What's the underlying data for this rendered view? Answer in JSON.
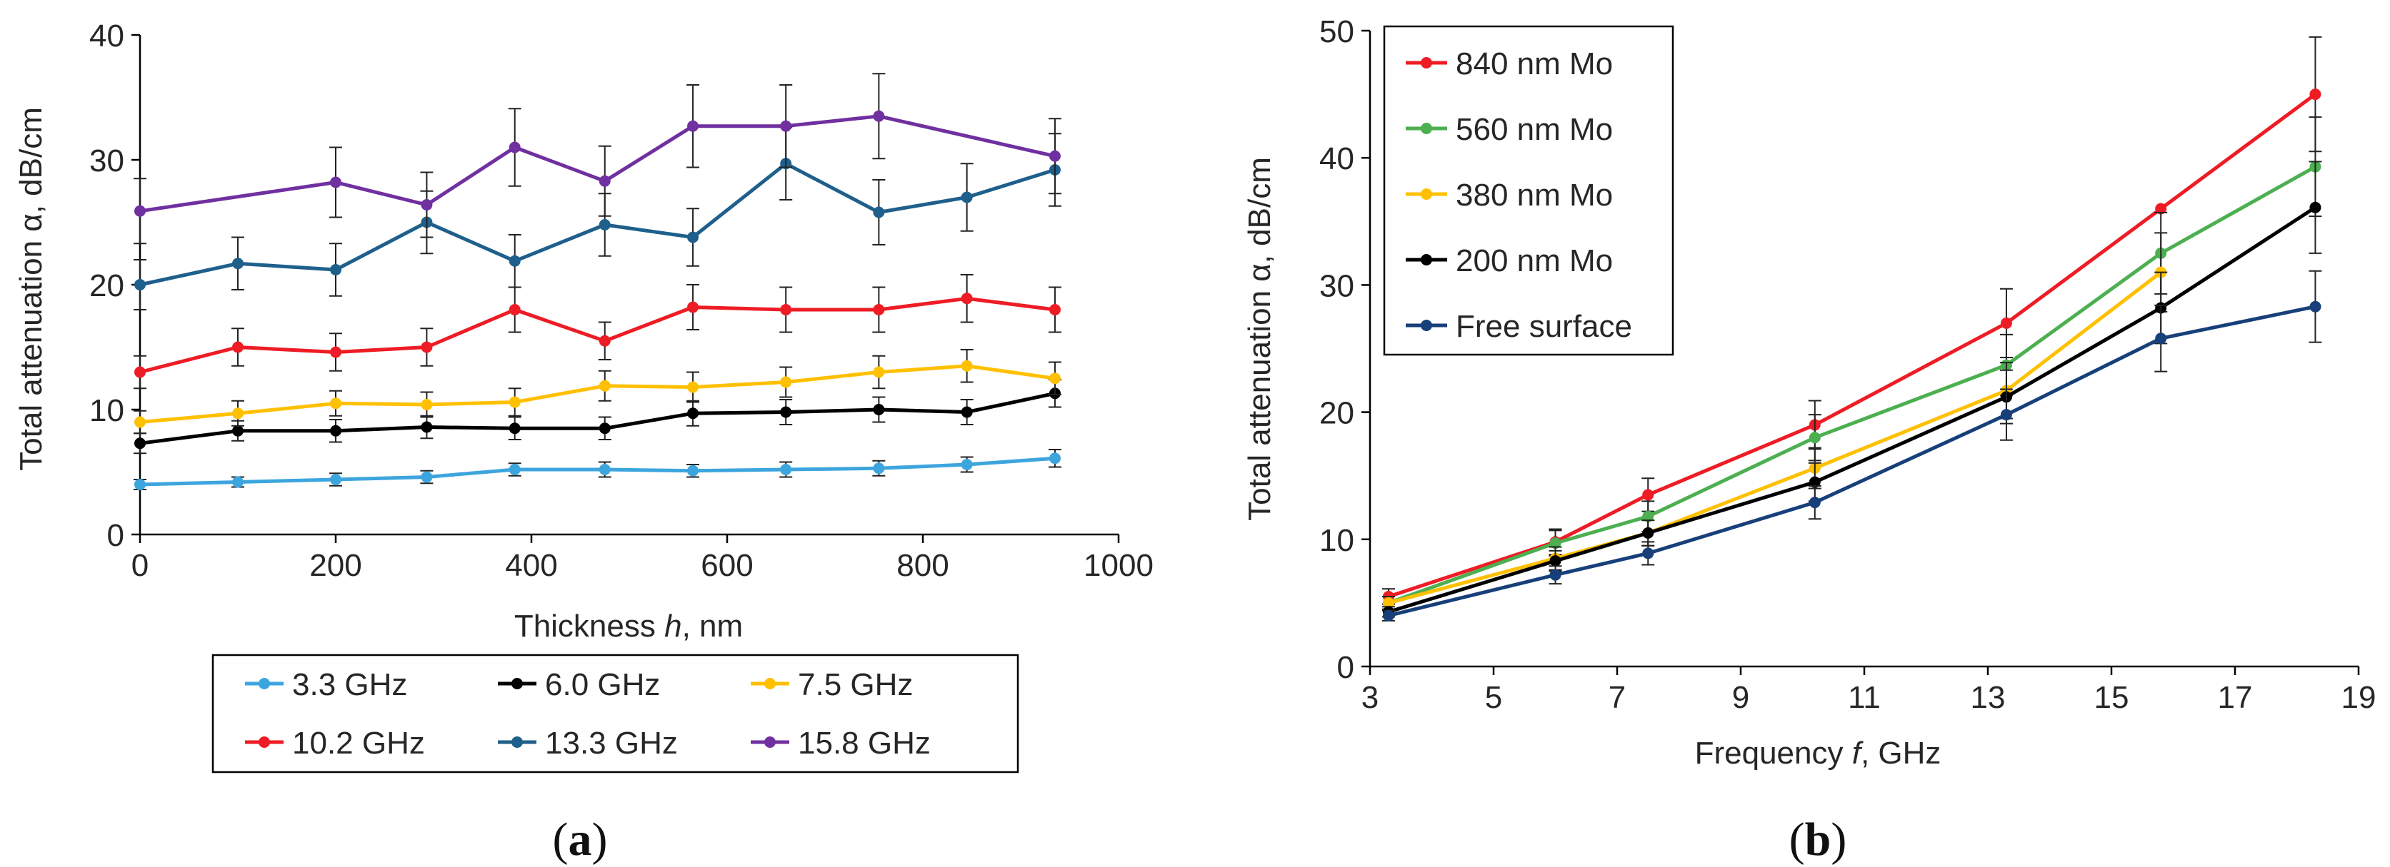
{
  "chart_data": [
    {
      "panel_label": "(a)",
      "panel_letter": "a",
      "type": "line",
      "xlabel_pre": "Thickness ",
      "xlabel_var": "h",
      "xlabel_post": ", nm",
      "ylabel": "Total attenuation α, dB/cm",
      "xlim": [
        0,
        1000
      ],
      "ylim": [
        0,
        40
      ],
      "xticks": [
        "0",
        "200",
        "400",
        "600",
        "800",
        "1000"
      ],
      "yticks": [
        "0",
        "10",
        "20",
        "30",
        "40"
      ],
      "legend_position": "bottom",
      "x": [
        0,
        100,
        200,
        293,
        383,
        475,
        565,
        660,
        755,
        845,
        935
      ],
      "series": [
        {
          "name": "3.3 GHz",
          "color": "#3DA5DE",
          "values": [
            4.0,
            4.2,
            4.4,
            4.6,
            5.2,
            5.2,
            5.1,
            5.2,
            5.3,
            5.6,
            6.1
          ],
          "errors": [
            0.4,
            0.4,
            0.5,
            0.5,
            0.5,
            0.6,
            0.5,
            0.6,
            0.6,
            0.6,
            0.7
          ]
        },
        {
          "name": "6.0 GHz",
          "color": "#000000",
          "values": [
            7.3,
            8.3,
            8.3,
            8.6,
            8.5,
            8.5,
            9.7,
            9.8,
            10.0,
            9.8,
            11.3
          ],
          "errors": [
            0.8,
            0.8,
            0.9,
            0.9,
            0.9,
            0.9,
            1.0,
            1.0,
            1.0,
            1.0,
            1.1
          ]
        },
        {
          "name": "7.5 GHz",
          "color": "#FFC000",
          "values": [
            9.0,
            9.7,
            10.5,
            10.4,
            10.6,
            11.9,
            11.8,
            12.2,
            13.0,
            13.5,
            12.5
          ],
          "errors": [
            0.9,
            1.0,
            1.0,
            1.0,
            1.1,
            1.2,
            1.2,
            1.2,
            1.3,
            1.3,
            1.3
          ]
        },
        {
          "name": "10.2 GHz",
          "color": "#EE1C25",
          "values": [
            13.0,
            15.0,
            14.6,
            15.0,
            18.0,
            15.5,
            18.2,
            18.0,
            18.0,
            18.9,
            18.0
          ],
          "errors": [
            1.3,
            1.5,
            1.5,
            1.5,
            1.8,
            1.5,
            1.8,
            1.8,
            1.8,
            1.9,
            1.8
          ]
        },
        {
          "name": "13.3 GHz",
          "color": "#1F5F8B",
          "values": [
            20.0,
            21.7,
            21.2,
            25.0,
            21.9,
            24.8,
            23.8,
            29.7,
            25.8,
            27.0,
            29.2
          ],
          "errors": [
            2.0,
            2.1,
            2.1,
            2.5,
            2.1,
            2.5,
            2.3,
            2.9,
            2.6,
            2.7,
            2.9
          ]
        },
        {
          "name": "15.8 GHz",
          "color": "#7030A0",
          "values": [
            25.9,
            null,
            28.2,
            26.4,
            31.0,
            28.3,
            32.7,
            32.7,
            33.5,
            null,
            30.3
          ],
          "errors": [
            2.6,
            null,
            2.8,
            2.6,
            3.1,
            2.8,
            3.3,
            3.3,
            3.4,
            null,
            3.0
          ]
        }
      ]
    },
    {
      "panel_label": "(b)",
      "panel_letter": "b",
      "type": "line",
      "xlabel_pre": "Frequency ",
      "xlabel_var": "f",
      "xlabel_post": ", GHz",
      "ylabel": "Total attenuation α, dB/cm",
      "xlim": [
        3,
        19
      ],
      "ylim": [
        0,
        50
      ],
      "xticks": [
        "3",
        "5",
        "7",
        "9",
        "11",
        "13",
        "15",
        "17",
        "19"
      ],
      "yticks": [
        "0",
        "10",
        "20",
        "30",
        "40",
        "50"
      ],
      "legend_position": "top-left",
      "x": [
        3.3,
        6.0,
        7.5,
        10.2,
        13.3,
        15.8,
        18.3
      ],
      "series": [
        {
          "name": "840 nm Mo",
          "color": "#EE1C25",
          "values": [
            5.5,
            9.8,
            13.5,
            19.0,
            27.0,
            36.0,
            45.0
          ],
          "errors": [
            0.6,
            1.0,
            1.3,
            1.9,
            2.7,
            null,
            4.5
          ]
        },
        {
          "name": "560 nm Mo",
          "color": "#4CAF50",
          "values": [
            5.0,
            9.7,
            11.8,
            18.0,
            23.7,
            32.5,
            39.3
          ],
          "errors": [
            0.5,
            1.0,
            1.2,
            1.8,
            2.4,
            3.2,
            3.9
          ]
        },
        {
          "name": "380 nm Mo",
          "color": "#FFC000",
          "values": [
            5.0,
            8.5,
            10.5,
            15.6,
            21.7,
            31.0,
            null
          ],
          "errors": [
            0.5,
            0.9,
            1.0,
            1.6,
            2.2,
            3.1,
            null
          ]
        },
        {
          "name": "200 nm Mo",
          "color": "#000000",
          "values": [
            4.3,
            8.3,
            10.5,
            14.5,
            21.2,
            28.2,
            36.1
          ],
          "errors": [
            0.4,
            0.8,
            1.0,
            1.5,
            2.1,
            2.8,
            3.6
          ]
        },
        {
          "name": "Free surface",
          "color": "#17407A",
          "values": [
            4.0,
            7.2,
            8.9,
            12.9,
            19.8,
            25.8,
            28.3
          ],
          "errors": [
            0.4,
            0.7,
            0.9,
            1.3,
            2.0,
            2.6,
            2.8
          ]
        }
      ]
    }
  ]
}
